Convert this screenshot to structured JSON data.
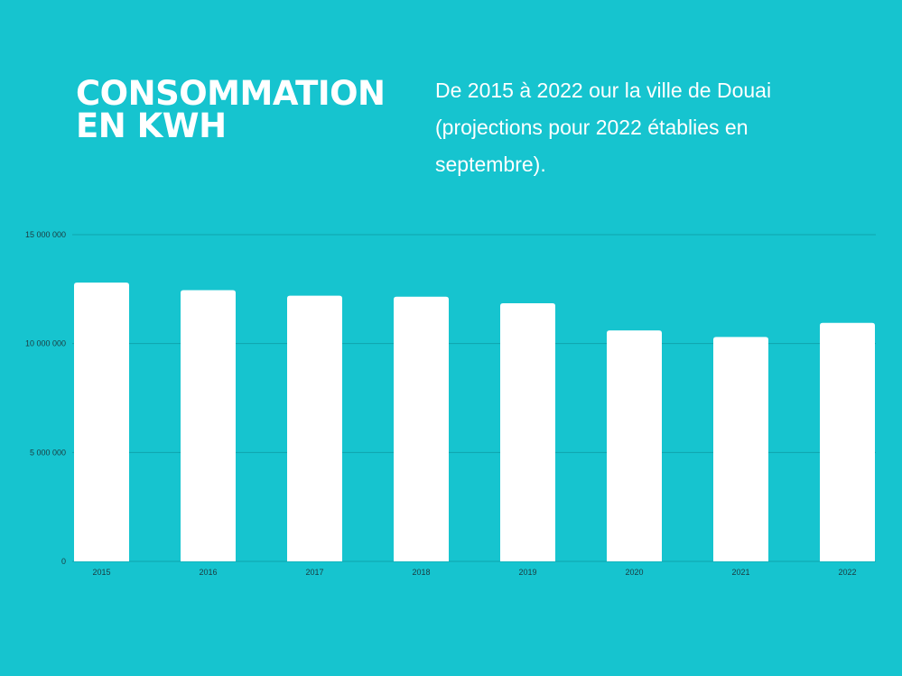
{
  "title": "CONSOMMATION EN KWH",
  "subtitle": "De 2015 à 2022 our la ville de Douai (projections pour 2022 établies en septembre).",
  "colors": {
    "background": "#16c4cf",
    "bar": "#ffffff",
    "gridline": "#0fa3ad",
    "text": "#ffffff",
    "tick_text": "#1b3a3f"
  },
  "chart_data": {
    "type": "bar",
    "categories": [
      "2015",
      "2016",
      "2017",
      "2018",
      "2019",
      "2020",
      "2021",
      "2022"
    ],
    "values": [
      12800000,
      12450000,
      12200000,
      12150000,
      11850000,
      10600000,
      10300000,
      10950000
    ],
    "ylim": [
      0,
      15000000
    ],
    "yticks": [
      0,
      5000000,
      10000000,
      15000000
    ],
    "ytick_labels": [
      "0",
      "5 000 000",
      "10 000 000",
      "15 000 000"
    ],
    "xlabel": "",
    "ylabel": "",
    "grid": true,
    "legend": "none"
  }
}
